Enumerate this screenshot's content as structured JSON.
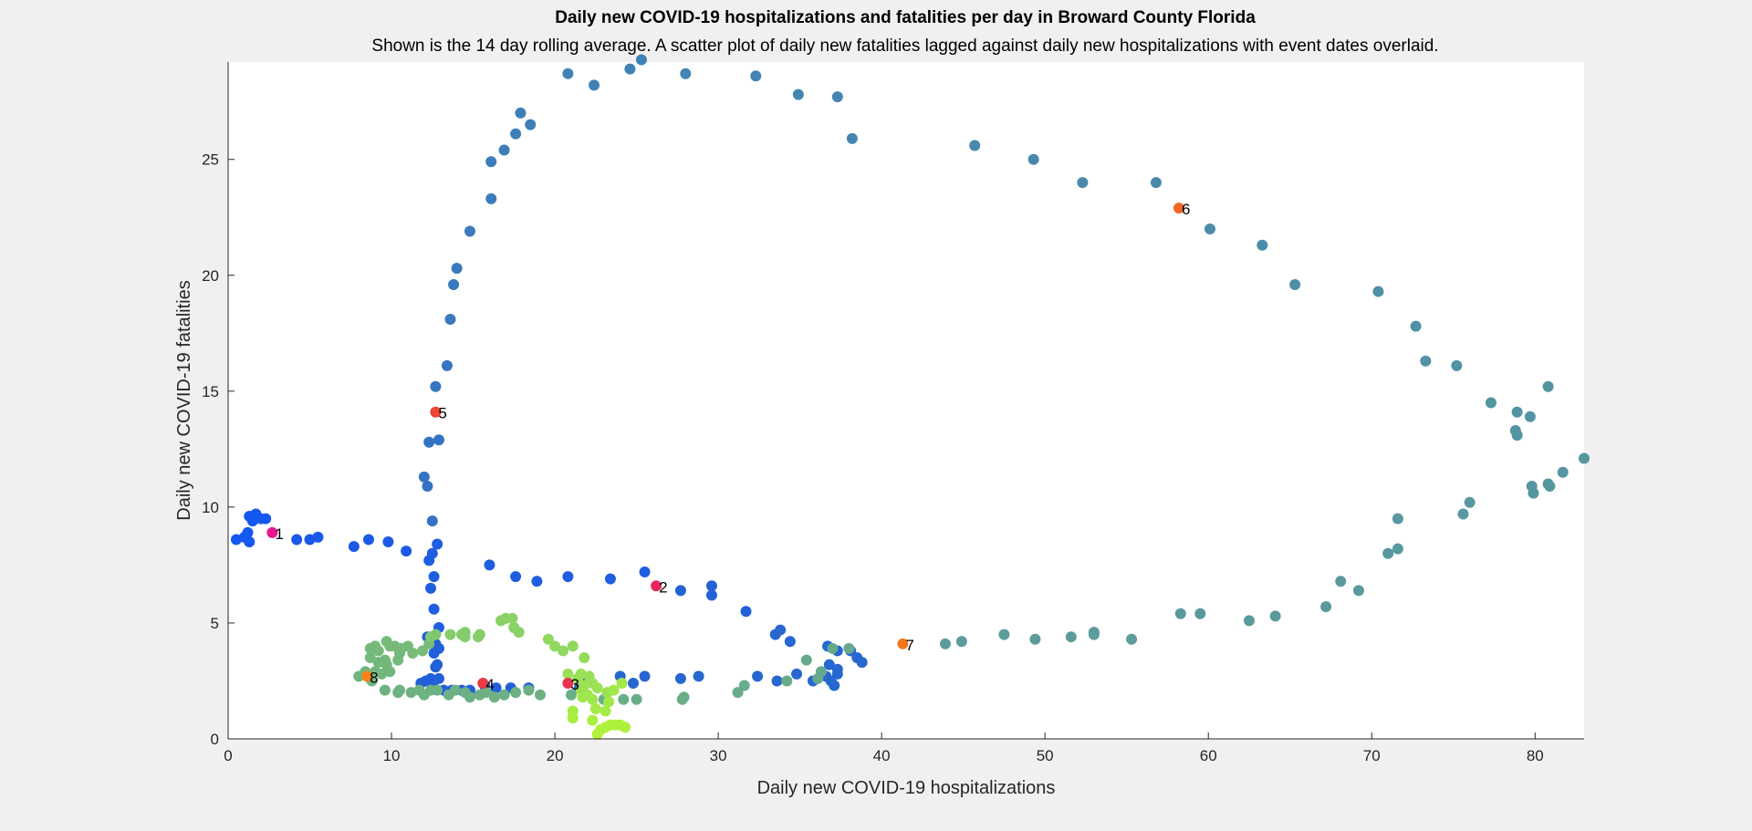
{
  "chart_data": {
    "type": "scatter",
    "title": "Daily new COVID-19 hospitalizations and fatalities per day in Broward County Florida",
    "subtitle": "Shown is the 14 day rolling average. A scatter plot of daily new fatalities lagged against daily new hospitalizations with event dates overlaid.",
    "xlabel": "Daily new COVID-19 hospitalizations",
    "ylabel": "Daily new COVID-19 fatalities",
    "xlim": [
      0,
      83
    ],
    "ylim": [
      0,
      29.2
    ],
    "xticks": [
      "0",
      "10",
      "20",
      "30",
      "40",
      "50",
      "60",
      "70",
      "80"
    ],
    "yticks": [
      "0",
      "5",
      "10",
      "15",
      "20",
      "25"
    ],
    "grid": false,
    "points": [
      [
        0.5,
        8.6,
        "#1558f0"
      ],
      [
        1.0,
        8.7,
        "#1558f0"
      ],
      [
        1.2,
        8.9,
        "#1558f0"
      ],
      [
        1.3,
        8.5,
        "#1558f0"
      ],
      [
        1.3,
        9.6,
        "#1558f0"
      ],
      [
        1.5,
        9.4,
        "#1558f0"
      ],
      [
        1.7,
        9.7,
        "#1558f0"
      ],
      [
        2.0,
        9.5,
        "#1558f0"
      ],
      [
        2.3,
        9.5,
        "#1558f0"
      ],
      [
        4.2,
        8.6,
        "#1a58ea"
      ],
      [
        5.0,
        8.6,
        "#1a58ea"
      ],
      [
        5.5,
        8.7,
        "#1a58ea"
      ],
      [
        7.7,
        8.3,
        "#1c5ae6"
      ],
      [
        8.6,
        8.6,
        "#1c5ae6"
      ],
      [
        9.8,
        8.5,
        "#1c5ae6"
      ],
      [
        10.9,
        8.1,
        "#1c5ae6"
      ],
      [
        12.3,
        7.7,
        "#1f5ee0"
      ],
      [
        12.5,
        8.0,
        "#1f5ee0"
      ],
      [
        12.8,
        8.4,
        "#1f5ee0"
      ],
      [
        12.6,
        7.0,
        "#1f5ee0"
      ],
      [
        12.4,
        6.5,
        "#1f5ee0"
      ],
      [
        12.6,
        5.6,
        "#1f5ee0"
      ],
      [
        12.9,
        4.8,
        "#1f5ee0"
      ],
      [
        12.2,
        4.4,
        "#2160d8"
      ],
      [
        12.7,
        4.1,
        "#2160d8"
      ],
      [
        12.9,
        3.9,
        "#2160d8"
      ],
      [
        12.6,
        3.7,
        "#2160d8"
      ],
      [
        12.8,
        3.2,
        "#2160d8"
      ],
      [
        12.7,
        3.1,
        "#2160d8"
      ],
      [
        12.4,
        2.6,
        "#2160d8"
      ],
      [
        12.9,
        2.6,
        "#2160d8"
      ],
      [
        12.1,
        2.5,
        "#2160d8"
      ],
      [
        11.8,
        2.4,
        "#2160d8"
      ],
      [
        12.6,
        2.2,
        "#2160d8"
      ],
      [
        13.2,
        2.1,
        "#2160d8"
      ],
      [
        13.7,
        2.1,
        "#2160d8"
      ],
      [
        14.3,
        2.1,
        "#2160d8"
      ],
      [
        14.8,
        2.1,
        "#2160d8"
      ],
      [
        15.7,
        2.3,
        "#2160d8"
      ],
      [
        16.4,
        2.2,
        "#2160d8"
      ],
      [
        17.3,
        2.2,
        "#2160d8"
      ],
      [
        18.4,
        2.2,
        "#2160d8"
      ],
      [
        16.0,
        7.5,
        "#1f5ee0"
      ],
      [
        17.6,
        7.0,
        "#1f5ee0"
      ],
      [
        18.9,
        6.8,
        "#1f5ee0"
      ],
      [
        20.8,
        7.0,
        "#1f5ee0"
      ],
      [
        23.4,
        6.9,
        "#1f5ee0"
      ],
      [
        25.5,
        7.2,
        "#1f5ee0"
      ],
      [
        27.7,
        6.4,
        "#2362d6"
      ],
      [
        29.6,
        6.6,
        "#2362d6"
      ],
      [
        29.6,
        6.2,
        "#2362d6"
      ],
      [
        31.7,
        5.5,
        "#2362d6"
      ],
      [
        33.5,
        4.5,
        "#2767d0"
      ],
      [
        33.8,
        4.7,
        "#2767d0"
      ],
      [
        34.4,
        4.2,
        "#2767d0"
      ],
      [
        36.7,
        4.0,
        "#2767d0"
      ],
      [
        37.3,
        3.8,
        "#2767d0"
      ],
      [
        38.1,
        3.8,
        "#2767d0"
      ],
      [
        38.5,
        3.5,
        "#2767d0"
      ],
      [
        38.8,
        3.3,
        "#2767d0"
      ],
      [
        36.8,
        3.2,
        "#2767d0"
      ],
      [
        37.3,
        3.0,
        "#2767d0"
      ],
      [
        37.3,
        2.8,
        "#2767d0"
      ],
      [
        36.6,
        2.7,
        "#2767d0"
      ],
      [
        34.8,
        2.8,
        "#2767d0"
      ],
      [
        33.6,
        2.5,
        "#2767d0"
      ],
      [
        32.4,
        2.7,
        "#2767d0"
      ],
      [
        35.8,
        2.5,
        "#2767d0"
      ],
      [
        36.9,
        2.5,
        "#2767d0"
      ],
      [
        37.1,
        2.3,
        "#2767d0"
      ],
      [
        28.8,
        2.7,
        "#2767d0"
      ],
      [
        27.7,
        2.6,
        "#2767d0"
      ],
      [
        25.5,
        2.7,
        "#2767d0"
      ],
      [
        24.8,
        2.4,
        "#2767d0"
      ],
      [
        24.0,
        2.7,
        "#2767d0"
      ],
      [
        22.0,
        2.6,
        "#2767d0"
      ],
      [
        21.5,
        2.2,
        "#2767d0"
      ],
      [
        12.9,
        12.9,
        "#3573c2"
      ],
      [
        12.3,
        12.8,
        "#3573c2"
      ],
      [
        12.0,
        11.3,
        "#3573c2"
      ],
      [
        12.2,
        10.9,
        "#3573c2"
      ],
      [
        12.5,
        9.4,
        "#3573c2"
      ],
      [
        12.7,
        15.2,
        "#3676c0"
      ],
      [
        13.4,
        16.1,
        "#3676c0"
      ],
      [
        13.6,
        18.1,
        "#3979bd"
      ],
      [
        13.8,
        19.6,
        "#3979bd"
      ],
      [
        14.0,
        20.3,
        "#3979bd"
      ],
      [
        14.8,
        21.9,
        "#3b7bbb"
      ],
      [
        16.1,
        23.3,
        "#3d7db9"
      ],
      [
        16.1,
        24.9,
        "#3d7db9"
      ],
      [
        16.9,
        25.4,
        "#3d7db9"
      ],
      [
        17.6,
        26.1,
        "#3f7fb8"
      ],
      [
        17.9,
        27.0,
        "#3f7fb8"
      ],
      [
        18.5,
        26.5,
        "#3f7fb8"
      ],
      [
        20.8,
        28.7,
        "#4182b6"
      ],
      [
        22.4,
        28.2,
        "#4182b6"
      ],
      [
        24.6,
        28.9,
        "#4182b6"
      ],
      [
        25.3,
        29.3,
        "#4182b6"
      ],
      [
        28.0,
        28.7,
        "#4384b3"
      ],
      [
        32.3,
        28.6,
        "#4384b3"
      ],
      [
        34.9,
        27.8,
        "#4586b1"
      ],
      [
        37.3,
        27.7,
        "#4586b1"
      ],
      [
        38.2,
        25.9,
        "#4586b1"
      ],
      [
        45.7,
        25.6,
        "#4788ae"
      ],
      [
        49.3,
        25.0,
        "#4788ae"
      ],
      [
        52.3,
        24.0,
        "#498aac"
      ],
      [
        56.8,
        24.0,
        "#498aac"
      ],
      [
        60.1,
        22.0,
        "#4b8caa"
      ],
      [
        63.3,
        21.3,
        "#4b8caa"
      ],
      [
        65.3,
        19.6,
        "#4d8ea8"
      ],
      [
        70.4,
        19.3,
        "#4f90a6"
      ],
      [
        72.7,
        17.8,
        "#4f90a6"
      ],
      [
        73.3,
        16.3,
        "#5192a4"
      ],
      [
        75.2,
        16.1,
        "#5192a4"
      ],
      [
        77.3,
        14.5,
        "#5394a2"
      ],
      [
        78.9,
        14.1,
        "#5394a2"
      ],
      [
        79.7,
        13.9,
        "#5394a2"
      ],
      [
        78.8,
        13.3,
        "#5394a2"
      ],
      [
        78.9,
        13.1,
        "#5394a2"
      ],
      [
        80.8,
        15.2,
        "#5394a2"
      ],
      [
        83.0,
        12.1,
        "#5596a0"
      ],
      [
        81.7,
        11.5,
        "#5596a0"
      ],
      [
        80.8,
        11.0,
        "#5596a0"
      ],
      [
        80.9,
        10.9,
        "#5596a0"
      ],
      [
        79.8,
        10.9,
        "#5596a0"
      ],
      [
        79.9,
        10.6,
        "#5596a0"
      ],
      [
        76.0,
        10.2,
        "#5898a0"
      ],
      [
        75.6,
        9.7,
        "#5898a0"
      ],
      [
        71.6,
        9.5,
        "#5898a0"
      ],
      [
        71.0,
        8.0,
        "#5898a0"
      ],
      [
        71.6,
        8.2,
        "#5898a0"
      ],
      [
        69.2,
        6.4,
        "#5a9a9c"
      ],
      [
        68.1,
        6.8,
        "#5a9a9c"
      ],
      [
        67.2,
        5.7,
        "#5a9a9c"
      ],
      [
        64.1,
        5.3,
        "#5a9a9c"
      ],
      [
        62.5,
        5.1,
        "#5a9a9c"
      ],
      [
        59.5,
        5.4,
        "#5a9a9c"
      ],
      [
        58.3,
        5.4,
        "#5a9a9c"
      ],
      [
        55.3,
        4.3,
        "#5c9c9a"
      ],
      [
        53.0,
        4.6,
        "#5c9c9a"
      ],
      [
        53.0,
        4.5,
        "#5c9c9a"
      ],
      [
        51.6,
        4.4,
        "#5c9c9a"
      ],
      [
        49.4,
        4.3,
        "#5c9c9a"
      ],
      [
        47.5,
        4.5,
        "#5c9c9a"
      ],
      [
        44.9,
        4.2,
        "#5c9c9a"
      ],
      [
        43.9,
        4.1,
        "#5c9c9a"
      ],
      [
        38.0,
        3.9,
        "#66aa8e"
      ],
      [
        37.0,
        3.9,
        "#66aa8e"
      ],
      [
        35.4,
        3.4,
        "#66aa8e"
      ],
      [
        36.3,
        2.9,
        "#66aa8e"
      ],
      [
        36.1,
        2.6,
        "#66aa8e"
      ],
      [
        34.2,
        2.5,
        "#68ac8c"
      ],
      [
        31.6,
        2.3,
        "#68ac8c"
      ],
      [
        31.2,
        2.0,
        "#68ac8c"
      ],
      [
        27.8,
        1.7,
        "#6aae88"
      ],
      [
        27.9,
        1.8,
        "#6aae88"
      ],
      [
        25.0,
        1.7,
        "#6aae88"
      ],
      [
        24.2,
        1.7,
        "#6aae88"
      ],
      [
        23.0,
        1.7,
        "#6aae88"
      ],
      [
        21.0,
        1.9,
        "#6aae88"
      ],
      [
        19.1,
        1.9,
        "#6cb084"
      ],
      [
        18.4,
        2.1,
        "#6cb084"
      ],
      [
        17.6,
        2.0,
        "#6cb084"
      ],
      [
        16.9,
        1.9,
        "#6cb084"
      ],
      [
        16.3,
        1.8,
        "#6cb084"
      ],
      [
        15.8,
        2.0,
        "#6cb084"
      ],
      [
        15.4,
        1.9,
        "#6cb084"
      ],
      [
        14.8,
        1.8,
        "#6cb084"
      ],
      [
        14.5,
        2.0,
        "#6cb084"
      ],
      [
        13.9,
        2.1,
        "#6cb084"
      ],
      [
        13.5,
        1.9,
        "#6cb084"
      ],
      [
        12.8,
        2.1,
        "#6cb084"
      ],
      [
        12.4,
        2.1,
        "#6cb084"
      ],
      [
        12.0,
        1.9,
        "#6eb282"
      ],
      [
        11.7,
        2.1,
        "#6eb282"
      ],
      [
        11.2,
        2.0,
        "#6eb282"
      ],
      [
        10.5,
        2.1,
        "#6eb282"
      ],
      [
        10.4,
        2.0,
        "#6eb282"
      ],
      [
        9.6,
        2.1,
        "#6eb282"
      ],
      [
        8.8,
        2.5,
        "#70b480"
      ],
      [
        8.7,
        2.6,
        "#70b480"
      ],
      [
        8.4,
        2.9,
        "#70b480"
      ],
      [
        8.0,
        2.7,
        "#70b480"
      ],
      [
        9.0,
        2.9,
        "#72b67e"
      ],
      [
        9.4,
        2.8,
        "#72b67e"
      ],
      [
        9.9,
        2.9,
        "#72b67e"
      ],
      [
        9.2,
        3.3,
        "#72b67e"
      ],
      [
        8.7,
        3.5,
        "#74b87c"
      ],
      [
        9.6,
        3.4,
        "#74b87c"
      ],
      [
        9.7,
        3.2,
        "#74b87c"
      ],
      [
        10.4,
        3.4,
        "#74b87c"
      ],
      [
        10.5,
        3.7,
        "#74b87c"
      ],
      [
        9.2,
        3.8,
        "#76ba7a"
      ],
      [
        9.9,
        4.0,
        "#76ba7a"
      ],
      [
        8.7,
        3.9,
        "#76ba7a"
      ],
      [
        9.0,
        4.0,
        "#76ba7a"
      ],
      [
        9.7,
        4.2,
        "#76ba7a"
      ],
      [
        10.2,
        4.0,
        "#76ba7a"
      ],
      [
        10.6,
        3.9,
        "#76ba7a"
      ],
      [
        11.0,
        4.0,
        "#76ba7a"
      ],
      [
        11.9,
        3.8,
        "#78bc78"
      ],
      [
        11.3,
        3.7,
        "#78bc78"
      ],
      [
        12.3,
        4.1,
        "#78bc78"
      ],
      [
        12.4,
        4.4,
        "#80c870"
      ],
      [
        12.7,
        4.5,
        "#80c870"
      ],
      [
        13.6,
        4.5,
        "#84cc6c"
      ],
      [
        14.3,
        4.5,
        "#84cc6c"
      ],
      [
        14.5,
        4.4,
        "#84cc6c"
      ],
      [
        14.5,
        4.6,
        "#84cc6c"
      ],
      [
        15.3,
        4.4,
        "#86ce6a"
      ],
      [
        15.4,
        4.5,
        "#86ce6a"
      ],
      [
        16.7,
        5.1,
        "#8ad266"
      ],
      [
        17.0,
        5.2,
        "#8ad266"
      ],
      [
        17.4,
        5.2,
        "#8ad266"
      ],
      [
        17.5,
        4.8,
        "#8ad266"
      ],
      [
        17.8,
        4.6,
        "#8ad266"
      ],
      [
        17.5,
        4.8,
        "#8ad266"
      ],
      [
        19.6,
        4.3,
        "#90d860"
      ],
      [
        20.0,
        4.0,
        "#90d860"
      ],
      [
        20.5,
        3.8,
        "#90d860"
      ],
      [
        21.1,
        4.0,
        "#90d860"
      ],
      [
        21.8,
        3.5,
        "#94dc5c"
      ],
      [
        20.8,
        2.8,
        "#98e056"
      ],
      [
        21.6,
        2.8,
        "#98e056"
      ],
      [
        21.4,
        2.6,
        "#98e056"
      ],
      [
        22.1,
        2.7,
        "#98e056"
      ],
      [
        22.3,
        2.4,
        "#98e056"
      ],
      [
        21.8,
        2.3,
        "#9ce252"
      ],
      [
        22.6,
        2.2,
        "#9ce252"
      ],
      [
        23.2,
        2.0,
        "#9ce252"
      ],
      [
        21.6,
        2.1,
        "#9ce252"
      ],
      [
        22.0,
        1.9,
        "#a0e64e"
      ],
      [
        22.3,
        1.7,
        "#a0e64e"
      ],
      [
        21.7,
        1.8,
        "#a0e64e"
      ],
      [
        23.3,
        1.6,
        "#a2e84a"
      ],
      [
        23.6,
        2.1,
        "#a2e84a"
      ],
      [
        24.1,
        2.4,
        "#a2e84a"
      ],
      [
        21.1,
        1.2,
        "#a6ec46"
      ],
      [
        22.5,
        1.3,
        "#a6ec46"
      ],
      [
        23.1,
        1.2,
        "#a6ec46"
      ],
      [
        21.1,
        0.9,
        "#aaee42"
      ],
      [
        22.3,
        0.8,
        "#aaee42"
      ],
      [
        22.8,
        0.4,
        "#aef03e"
      ],
      [
        23.1,
        0.5,
        "#aef03e"
      ],
      [
        23.4,
        0.6,
        "#aef03e"
      ],
      [
        23.7,
        0.6,
        "#aef03e"
      ],
      [
        24.0,
        0.6,
        "#aef03e"
      ],
      [
        24.3,
        0.5,
        "#aef03e"
      ],
      [
        22.6,
        0.2,
        "#b2f23a"
      ]
    ],
    "events": [
      {
        "label": "1",
        "x": 2.7,
        "y": 8.9,
        "color": "#e4178d"
      },
      {
        "label": "2",
        "x": 26.2,
        "y": 6.6,
        "color": "#e8275f"
      },
      {
        "label": "3",
        "x": 20.8,
        "y": 2.4,
        "color": "#e8334c"
      },
      {
        "label": "4",
        "x": 15.6,
        "y": 2.4,
        "color": "#ea3a45"
      },
      {
        "label": "5",
        "x": 12.7,
        "y": 14.1,
        "color": "#ee4634"
      },
      {
        "label": "6",
        "x": 58.2,
        "y": 22.9,
        "color": "#f26627"
      },
      {
        "label": "7",
        "x": 41.3,
        "y": 4.1,
        "color": "#f4761f"
      },
      {
        "label": "8",
        "x": 8.5,
        "y": 2.7,
        "color": "#f88418"
      }
    ]
  }
}
